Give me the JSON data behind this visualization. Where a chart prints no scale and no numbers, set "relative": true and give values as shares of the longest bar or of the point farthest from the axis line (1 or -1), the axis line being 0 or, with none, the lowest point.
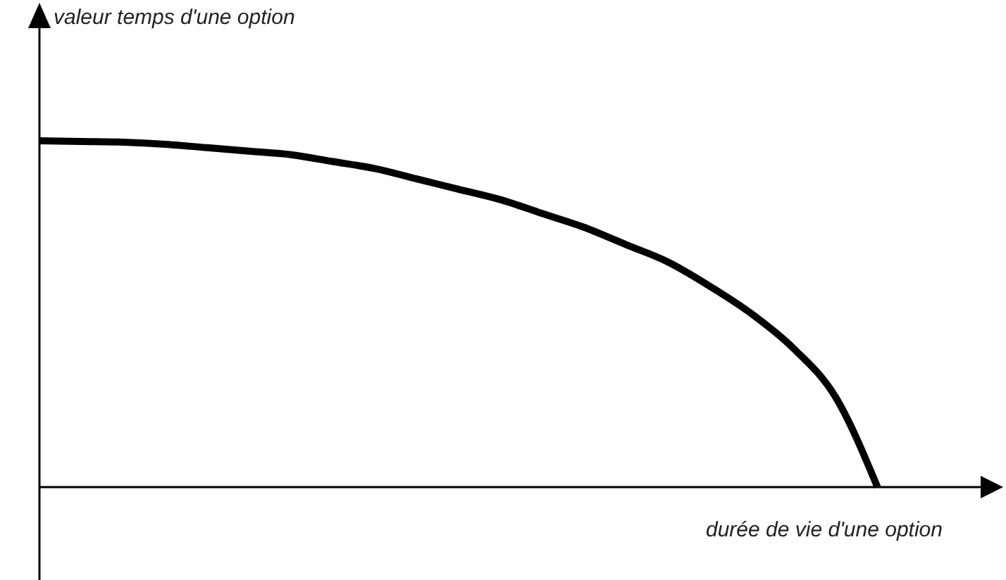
{
  "chart_data": {
    "type": "line",
    "relative": true,
    "xlabel": "durée de vie d'une option",
    "annotations": [
      "valeur temps d'une option"
    ],
    "categories": [
      null,
      null,
      null,
      null,
      null,
      null,
      null,
      null,
      null,
      null,
      null,
      null,
      null,
      null,
      null,
      null,
      null,
      null,
      null,
      null,
      null,
      null,
      null,
      null
    ],
    "series": [
      {
        "color": "#000000",
        "values": [
          1,
          0.998,
          0.996,
          0.99,
          0.98,
          0.97,
          0.96,
          0.94,
          0.92,
          0.89,
          0.86,
          0.83,
          0.79,
          0.75,
          0.7,
          0.65,
          0.58,
          0.5,
          0.4,
          0.26,
          0,
          null,
          null,
          null
        ]
      }
    ],
    "marker": "none",
    "line_style": "solid"
  }
}
